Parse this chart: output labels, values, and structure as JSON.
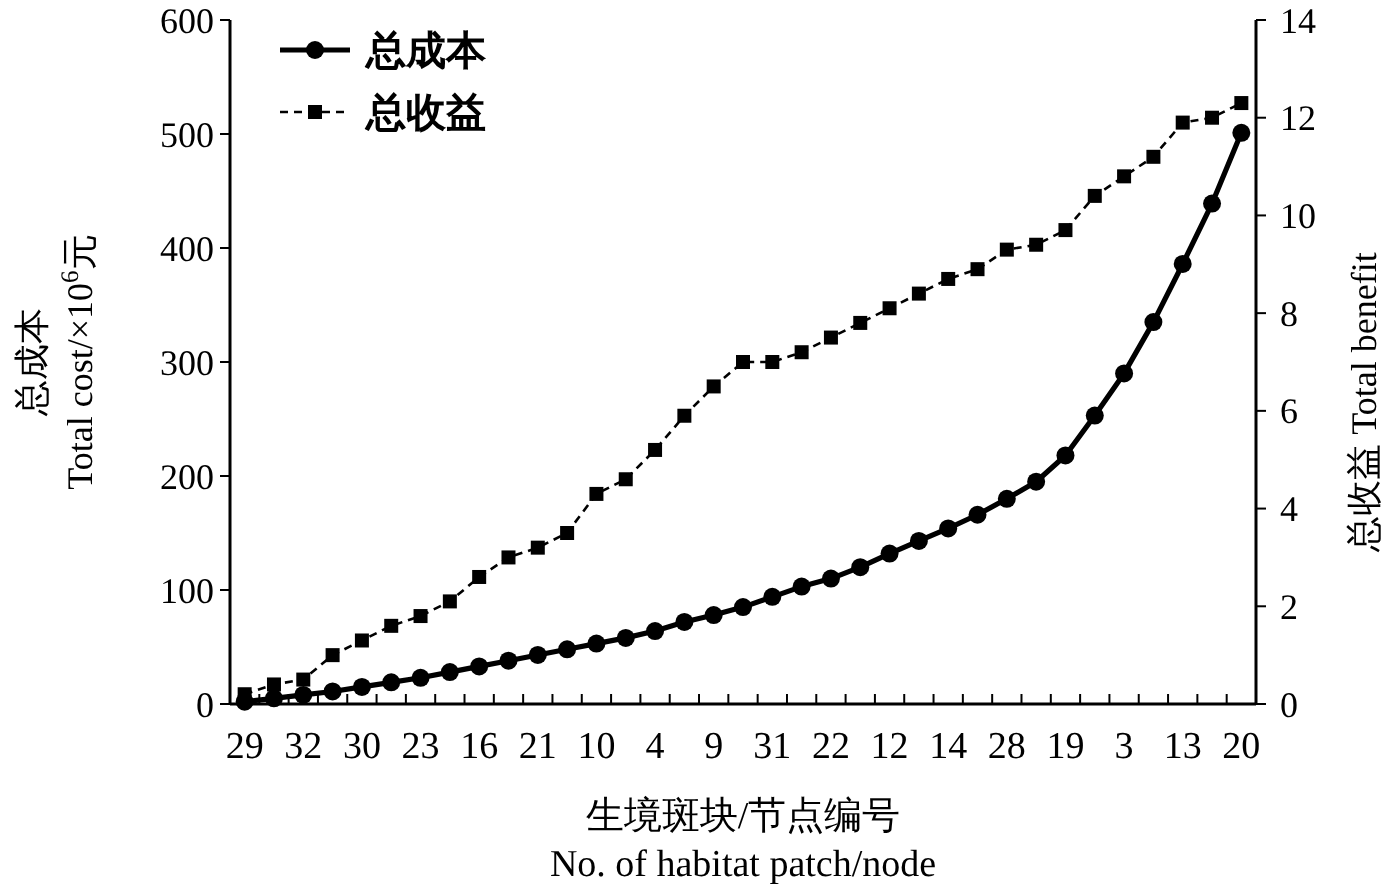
{
  "chart_data": {
    "type": "line",
    "categories": [
      "29",
      null,
      "32",
      null,
      "30",
      null,
      "23",
      null,
      "16",
      null,
      "21",
      null,
      "10",
      null,
      "4",
      null,
      "9",
      null,
      "31",
      null,
      "22",
      null,
      "12",
      null,
      "14",
      null,
      "28",
      null,
      "19",
      null,
      "3",
      null,
      "13",
      null,
      "20"
    ],
    "series": [
      {
        "name": "总成本",
        "color": "#000000",
        "marker": "circle",
        "line_style": "solid",
        "values": [
          2,
          5,
          8,
          11,
          15,
          19,
          23,
          28,
          33,
          38,
          43,
          48,
          53,
          58,
          64,
          72,
          78,
          85,
          94,
          103,
          110,
          120,
          132,
          143,
          154,
          166,
          180,
          195,
          218,
          253,
          290,
          335,
          386,
          439,
          501
        ]
      },
      {
        "name": "总收益",
        "color": "#000000",
        "marker": "square",
        "line_style": "dashed",
        "axis": "y2",
        "values": [
          0.2,
          0.4,
          0.5,
          1.0,
          1.3,
          1.6,
          1.8,
          2.1,
          2.6,
          3.0,
          3.2,
          3.5,
          4.3,
          4.6,
          5.2,
          5.9,
          6.5,
          7.0,
          7.0,
          7.2,
          7.5,
          7.8,
          8.1,
          8.4,
          8.7,
          8.9,
          9.3,
          9.4,
          9.7,
          10.4,
          10.8,
          11.2,
          11.9,
          12.0,
          12.3
        ]
      }
    ],
    "xlabel": "生境斑块/节点编号\nNo. of habitat patch/node",
    "ylabel": "总成本\nTotal cost/×10$^{6}$元",
    "y2label": "总收益  Total benefit",
    "ylim": [
      0,
      600
    ],
    "yticks": [
      0,
      100,
      200,
      300,
      400,
      500,
      600
    ],
    "y2lim": [
      0,
      14
    ],
    "y2ticks": [
      0,
      2,
      4,
      6,
      8,
      10,
      12,
      14
    ],
    "legend": "top left",
    "grid": false
  }
}
